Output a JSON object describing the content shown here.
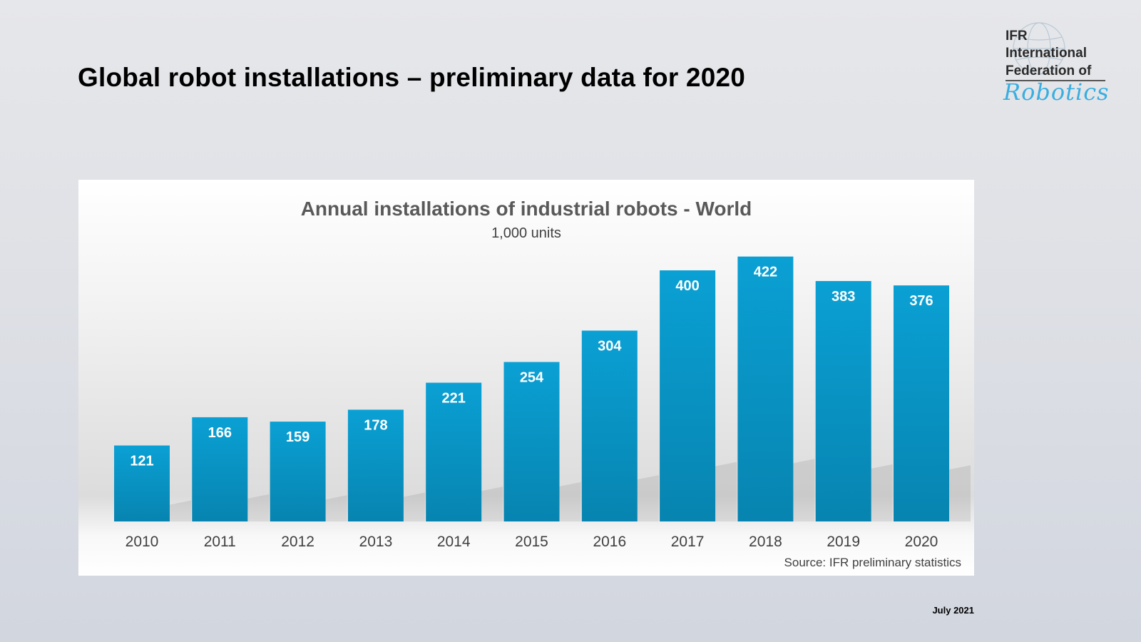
{
  "slide": {
    "title": "Global robot installations – preliminary data for 2020",
    "date": "July 2021",
    "logo": {
      "line1": "IFR",
      "line2": "International",
      "line3": "Federation of",
      "script": "Robotics"
    }
  },
  "chart_data": {
    "type": "bar",
    "title": "Annual installations of industrial robots - World",
    "subtitle": "1,000 units",
    "categories": [
      "2010",
      "2011",
      "2012",
      "2013",
      "2014",
      "2015",
      "2016",
      "2017",
      "2018",
      "2019",
      "2020"
    ],
    "values": [
      121,
      166,
      159,
      178,
      221,
      254,
      304,
      400,
      422,
      383,
      376
    ],
    "source": "Source: IFR preliminary  statistics",
    "xlabel": "",
    "ylabel": "",
    "ylim": [
      0,
      430
    ],
    "grid": false,
    "bar_color": "#0a93c4"
  }
}
